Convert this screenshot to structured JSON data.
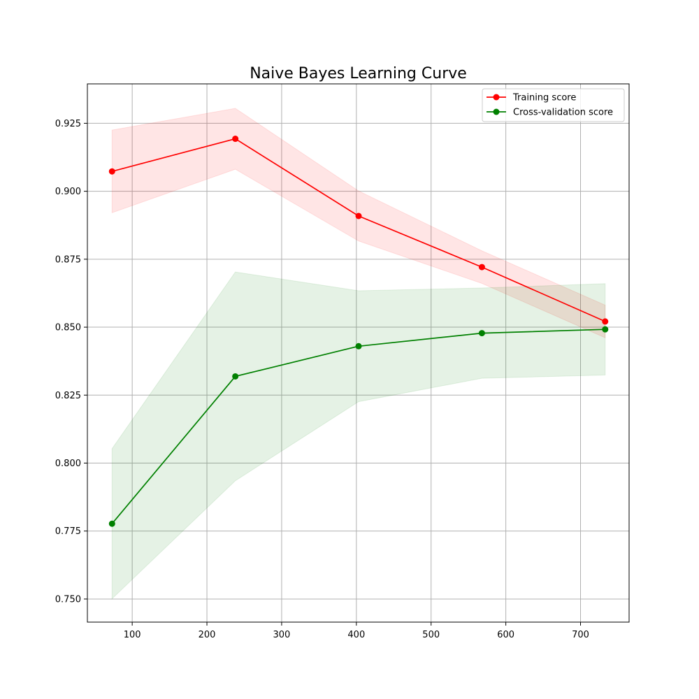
{
  "chart_data": {
    "type": "line",
    "title": "Naive Bayes Learning Curve",
    "xlabel": "",
    "ylabel": "",
    "xlim": [
      40,
      765
    ],
    "ylim": [
      0.7415,
      0.9395
    ],
    "xticks": [
      100,
      200,
      300,
      400,
      500,
      600,
      700
    ],
    "yticks": [
      0.75,
      0.775,
      0.8,
      0.825,
      0.85,
      0.875,
      0.9,
      0.925
    ],
    "ytick_labels": [
      "0.750",
      "0.775",
      "0.800",
      "0.825",
      "0.850",
      "0.875",
      "0.900",
      "0.925"
    ],
    "grid": true,
    "legend": {
      "placement": "top-right"
    },
    "x": [
      73,
      238,
      403,
      568,
      733
    ],
    "series": [
      {
        "name": "Training score",
        "color": "#ff0000",
        "band_color": "#ff0000",
        "values": [
          0.9073,
          0.9193,
          0.8909,
          0.8721,
          0.8521
        ],
        "band_upper": [
          0.9225,
          0.9305,
          0.9001,
          0.8781,
          0.8581
        ],
        "band_lower": [
          0.8921,
          0.9081,
          0.8817,
          0.8661,
          0.8461
        ]
      },
      {
        "name": "Cross-validation score",
        "color": "#008000",
        "band_color": "#008000",
        "values": [
          0.7777,
          0.8319,
          0.843,
          0.8478,
          0.8492
        ],
        "band_upper": [
          0.8053,
          0.8703,
          0.8634,
          0.8644,
          0.866
        ],
        "band_lower": [
          0.7501,
          0.7935,
          0.8226,
          0.8312,
          0.8324
        ]
      }
    ]
  }
}
